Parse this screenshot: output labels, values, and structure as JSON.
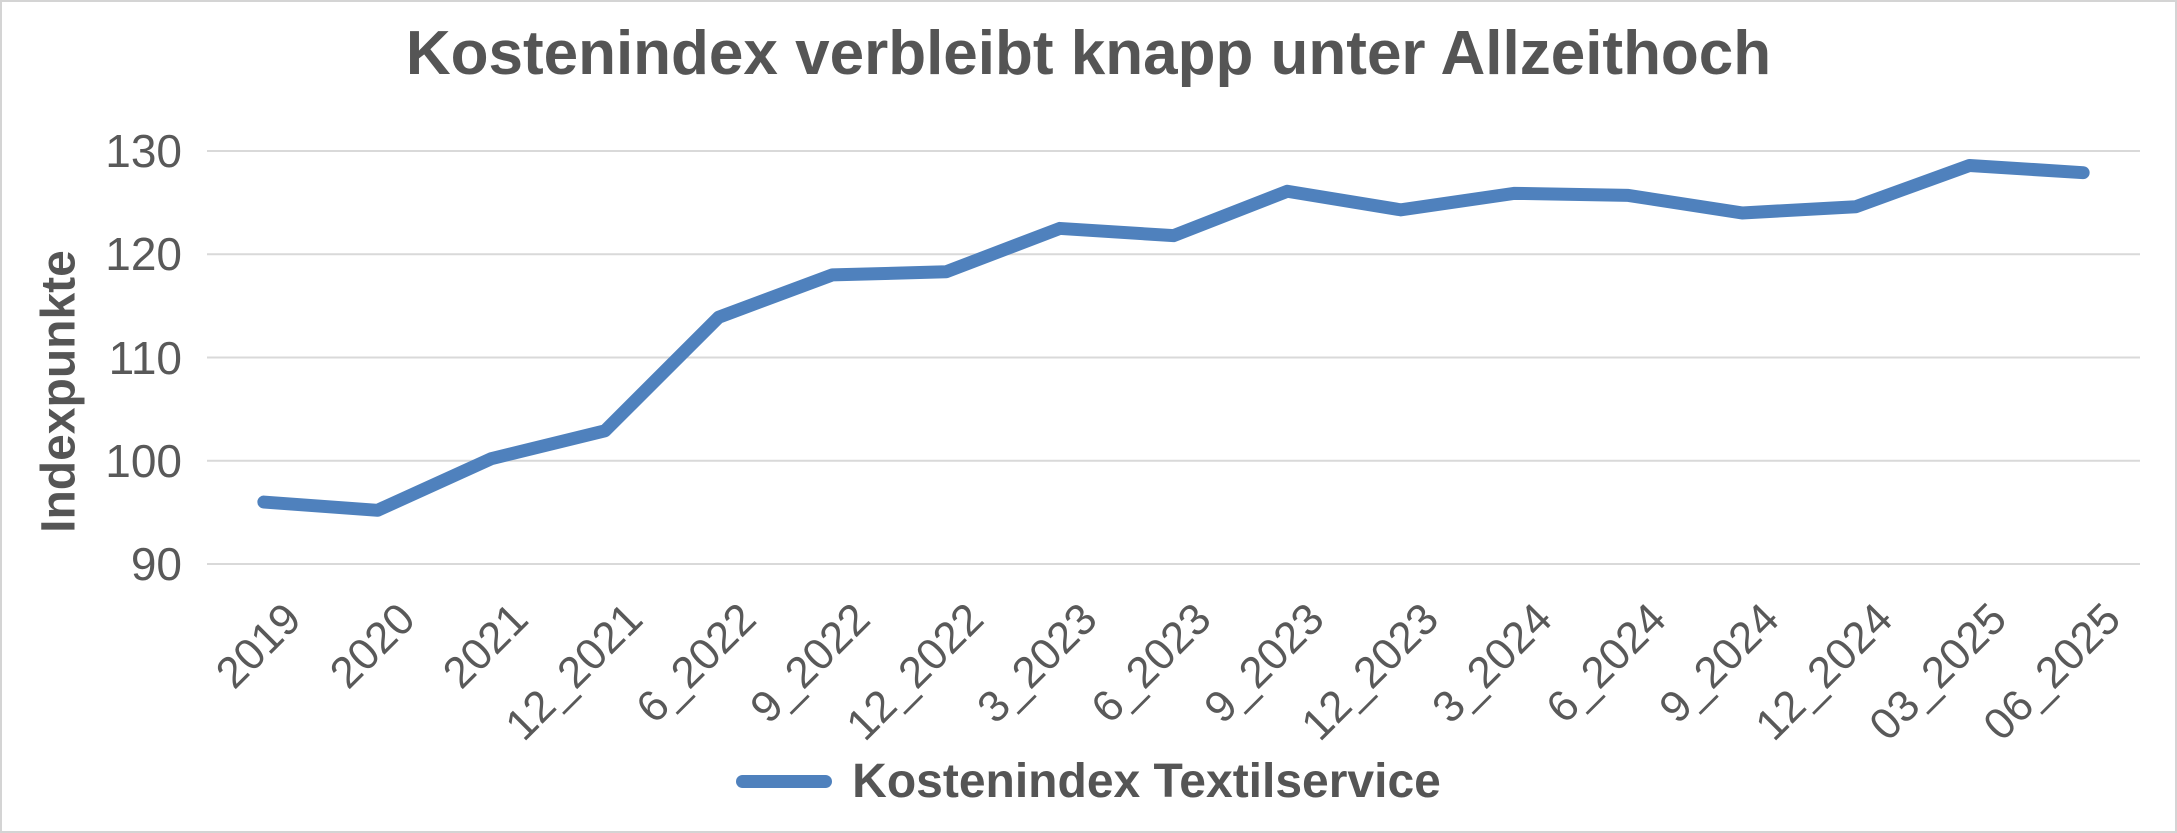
{
  "frame": {
    "background_color": "#ffffff",
    "border_color": "#d4d4d4"
  },
  "chart_data": {
    "type": "line",
    "title": "Kostenindex verbleibt knapp unter Allzeithoch",
    "ylabel": "Indexpunkte",
    "xlabel": "",
    "categories": [
      "2019",
      "2020",
      "2021",
      "12_2021",
      "6_2022",
      "9_2022",
      "12_2022",
      "3_2023",
      "6_2023",
      "9_2023",
      "12_2023",
      "3_2024",
      "6_2024",
      "9_2024",
      "12_2024",
      "03_2025",
      "06_2025"
    ],
    "series": [
      {
        "name": "Kostenindex Textilservice",
        "color": "#4F81BD",
        "values": [
          96.0,
          95.2,
          100.2,
          102.9,
          113.9,
          118.0,
          118.3,
          122.5,
          121.8,
          126.1,
          124.3,
          125.9,
          125.7,
          124.0,
          124.6,
          128.6,
          127.9
        ]
      }
    ],
    "ylim": [
      90,
      130
    ],
    "yticks": [
      90,
      100,
      110,
      120,
      130
    ],
    "grid": "horizontal",
    "gridline_color": "#d9d9d9",
    "legend_position": "bottom",
    "x_tick_rotation_deg": 45
  }
}
